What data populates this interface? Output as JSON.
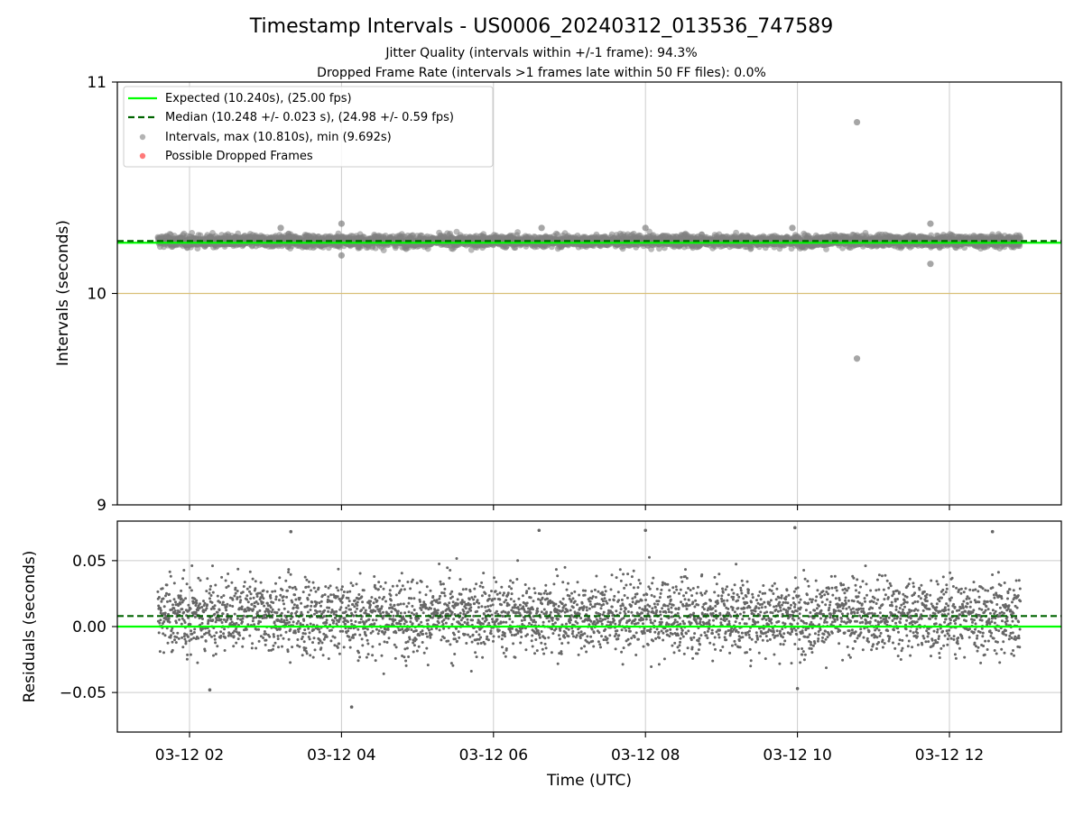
{
  "header": {
    "title": "Timestamp Intervals - US0006_20240312_013536_747589",
    "subtitle_1": "Jitter Quality (intervals within +/-1 frame): 94.3%",
    "subtitle_2": "Dropped Frame Rate (intervals >1 frames late within 50 FF files): 0.0%"
  },
  "colors": {
    "expected": "#00ff00",
    "median": "#006400",
    "intervals": "#808080",
    "dropped": "#ff4040",
    "tenline": "#d9bf77",
    "grid": "#cccccc"
  },
  "chart_data": [
    {
      "type": "scatter",
      "ylabel": "Intervals (seconds)",
      "ylim": [
        9,
        11
      ],
      "yticks": [
        "9",
        "10",
        "11"
      ],
      "grid": "vertical",
      "legend_position": "upper-left",
      "legend": [
        "Expected (10.240s), (25.00 fps)",
        "Median (10.248 +/- 0.023 s), (24.98 +/- 0.59 fps)",
        "Intervals, max (10.810s), min (9.692s)",
        "Possible Dropped Frames"
      ],
      "reference_lines": {
        "expected": 10.24,
        "median": 10.248,
        "ten": 10.0
      },
      "x_range": [
        "03-12 01:35",
        "03-12 12:56"
      ],
      "band": {
        "center": 10.248,
        "typical_spread": 0.023
      },
      "outliers": [
        {
          "x": "03-12 10:47",
          "y": 10.81
        },
        {
          "x": "03-12 10:47",
          "y": 9.692
        },
        {
          "x": "03-12 11:45",
          "y": 10.14
        },
        {
          "x": "03-12 11:45",
          "y": 10.33
        },
        {
          "x": "03-12 04:00",
          "y": 10.33
        },
        {
          "x": "03-12 04:00",
          "y": 10.18
        },
        {
          "x": "03-12 03:12",
          "y": 10.31
        },
        {
          "x": "03-12 06:38",
          "y": 10.31
        },
        {
          "x": "03-12 08:00",
          "y": 10.31
        },
        {
          "x": "03-12 09:56",
          "y": 10.31
        }
      ],
      "dropped_frames": []
    },
    {
      "type": "scatter",
      "xlabel": "Time (UTC)",
      "ylabel": "Residuals (seconds)",
      "ylim": [
        -0.08,
        0.08
      ],
      "yticks": [
        "0.05",
        "0.00",
        "−0.05"
      ],
      "xticks": [
        "03-12 02",
        "03-12 04",
        "03-12 06",
        "03-12 08",
        "03-12 10",
        "03-12 12"
      ],
      "grid": "both",
      "reference_lines": {
        "expected": 0.0,
        "median": 0.008
      },
      "x_range": [
        "03-12 01:35",
        "03-12 12:56"
      ],
      "band": {
        "center": 0.008,
        "typical_spread": 0.023
      },
      "outliers": [
        {
          "x": "03-12 03:20",
          "y": 0.072
        },
        {
          "x": "03-12 04:08",
          "y": -0.061
        },
        {
          "x": "03-12 06:36",
          "y": 0.073
        },
        {
          "x": "03-12 08:00",
          "y": 0.073
        },
        {
          "x": "03-12 09:58",
          "y": 0.075
        },
        {
          "x": "03-12 12:34",
          "y": 0.072
        },
        {
          "x": "03-12 10:00",
          "y": -0.047
        },
        {
          "x": "03-12 02:16",
          "y": -0.048
        }
      ]
    }
  ]
}
